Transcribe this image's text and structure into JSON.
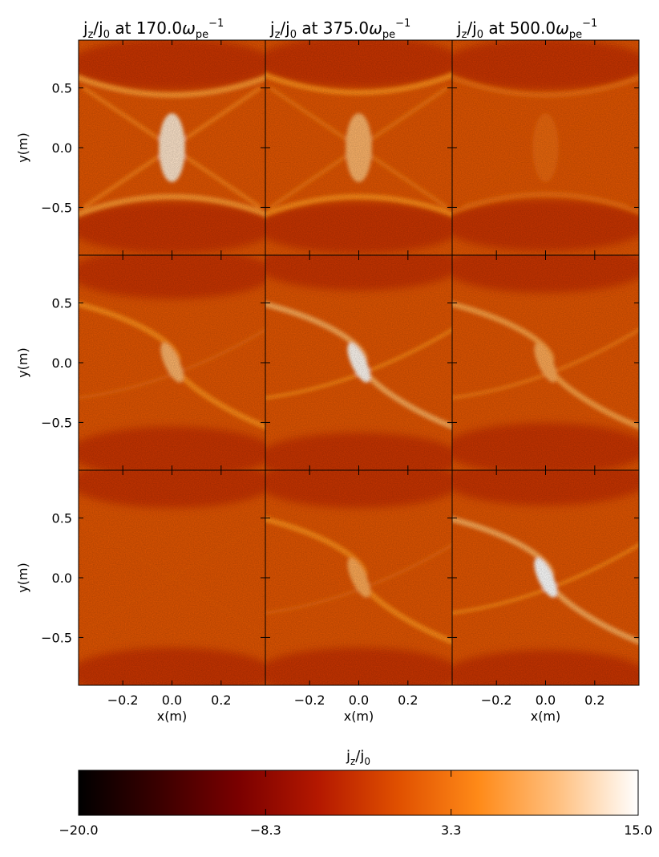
{
  "chart_data": {
    "type": "heatmap",
    "quantity": "j_z/j_0",
    "panel_grid": {
      "rows": 3,
      "cols": 3
    },
    "columns": [
      {
        "title": {
          "base": "j",
          "sub1": "z",
          "sep": "/",
          "base2": "j",
          "sub2": "0",
          "mid": " at ",
          "time": "170.0",
          "omega": "ω",
          "omega_sub": "pe",
          "omega_sup": "−1"
        }
      },
      {
        "title": {
          "base": "j",
          "sub1": "z",
          "sep": "/",
          "base2": "j",
          "sub2": "0",
          "mid": " at ",
          "time": "375.0",
          "omega": "ω",
          "omega_sub": "pe",
          "omega_sup": "−1"
        }
      },
      {
        "title": {
          "base": "j",
          "sub1": "z",
          "sep": "/",
          "base2": "j",
          "sub2": "0",
          "mid": " at ",
          "time": "500.0",
          "omega": "ω",
          "omega_sub": "pe",
          "omega_sup": "−1"
        }
      }
    ],
    "xlabel": "x(m)",
    "ylabel": "y(m)",
    "xlim": [
      -0.38,
      0.38
    ],
    "ylim": [
      -0.9,
      0.9
    ],
    "xticks": [
      -0.2,
      0.0,
      0.2
    ],
    "xtick_labels": [
      "−0.2",
      "0.0",
      "0.2"
    ],
    "yticks": [
      0.5,
      0.0,
      -0.5
    ],
    "ytick_labels": [
      "0.5",
      "0.0",
      "−0.5"
    ],
    "panels": [
      {
        "row": 0,
        "col": 0,
        "structure": "x-point",
        "peak": 13,
        "wing": 6,
        "top": 0.5,
        "bot": -0.47
      },
      {
        "row": 0,
        "col": 1,
        "structure": "x-point",
        "peak": 9,
        "wing": 5,
        "top": 0.52,
        "bot": -0.47
      },
      {
        "row": 0,
        "col": 2,
        "structure": "x-point-faint",
        "peak": 2,
        "wing": 2.5,
        "top": 0.5,
        "bot": -0.45
      },
      {
        "row": 1,
        "col": 0,
        "structure": "tilted-sheet",
        "peak": 9,
        "wing": 5,
        "top": 0.55,
        "bot": -0.55
      },
      {
        "row": 1,
        "col": 1,
        "structure": "tilted-sheet",
        "peak": 14.5,
        "wing": 8,
        "top": 0.62,
        "bot": -0.6
      },
      {
        "row": 1,
        "col": 2,
        "structure": "tilted-sheet",
        "peak": 8,
        "wing": 7,
        "top": 0.6,
        "bot": -0.52
      },
      {
        "row": 2,
        "col": 0,
        "structure": "uniform",
        "peak": 0.5,
        "wing": 1,
        "top": 0.6,
        "bot": -0.6
      },
      {
        "row": 2,
        "col": 1,
        "structure": "tilted-sheet-faint",
        "peak": 8,
        "wing": 5,
        "top": 0.6,
        "bot": -0.6
      },
      {
        "row": 2,
        "col": 2,
        "structure": "tilted-sheet",
        "peak": 15,
        "wing": 8,
        "top": 0.62,
        "bot": -0.62
      }
    ],
    "colorbar": {
      "label": {
        "base": "j",
        "sub1": "z",
        "sep": "/",
        "base2": "j",
        "sub2": "0"
      },
      "range": [
        -20.0,
        15.0
      ],
      "ticks": [
        -20.0,
        -8.3,
        3.3,
        15.0
      ],
      "tick_labels": [
        "−20.0",
        "−8.3",
        "3.3",
        "15.0"
      ],
      "colormap": [
        "#000000",
        "#3a0000",
        "#7a0000",
        "#b41800",
        "#e05000",
        "#ff8a18",
        "#ffc080",
        "#ffffff"
      ]
    }
  }
}
